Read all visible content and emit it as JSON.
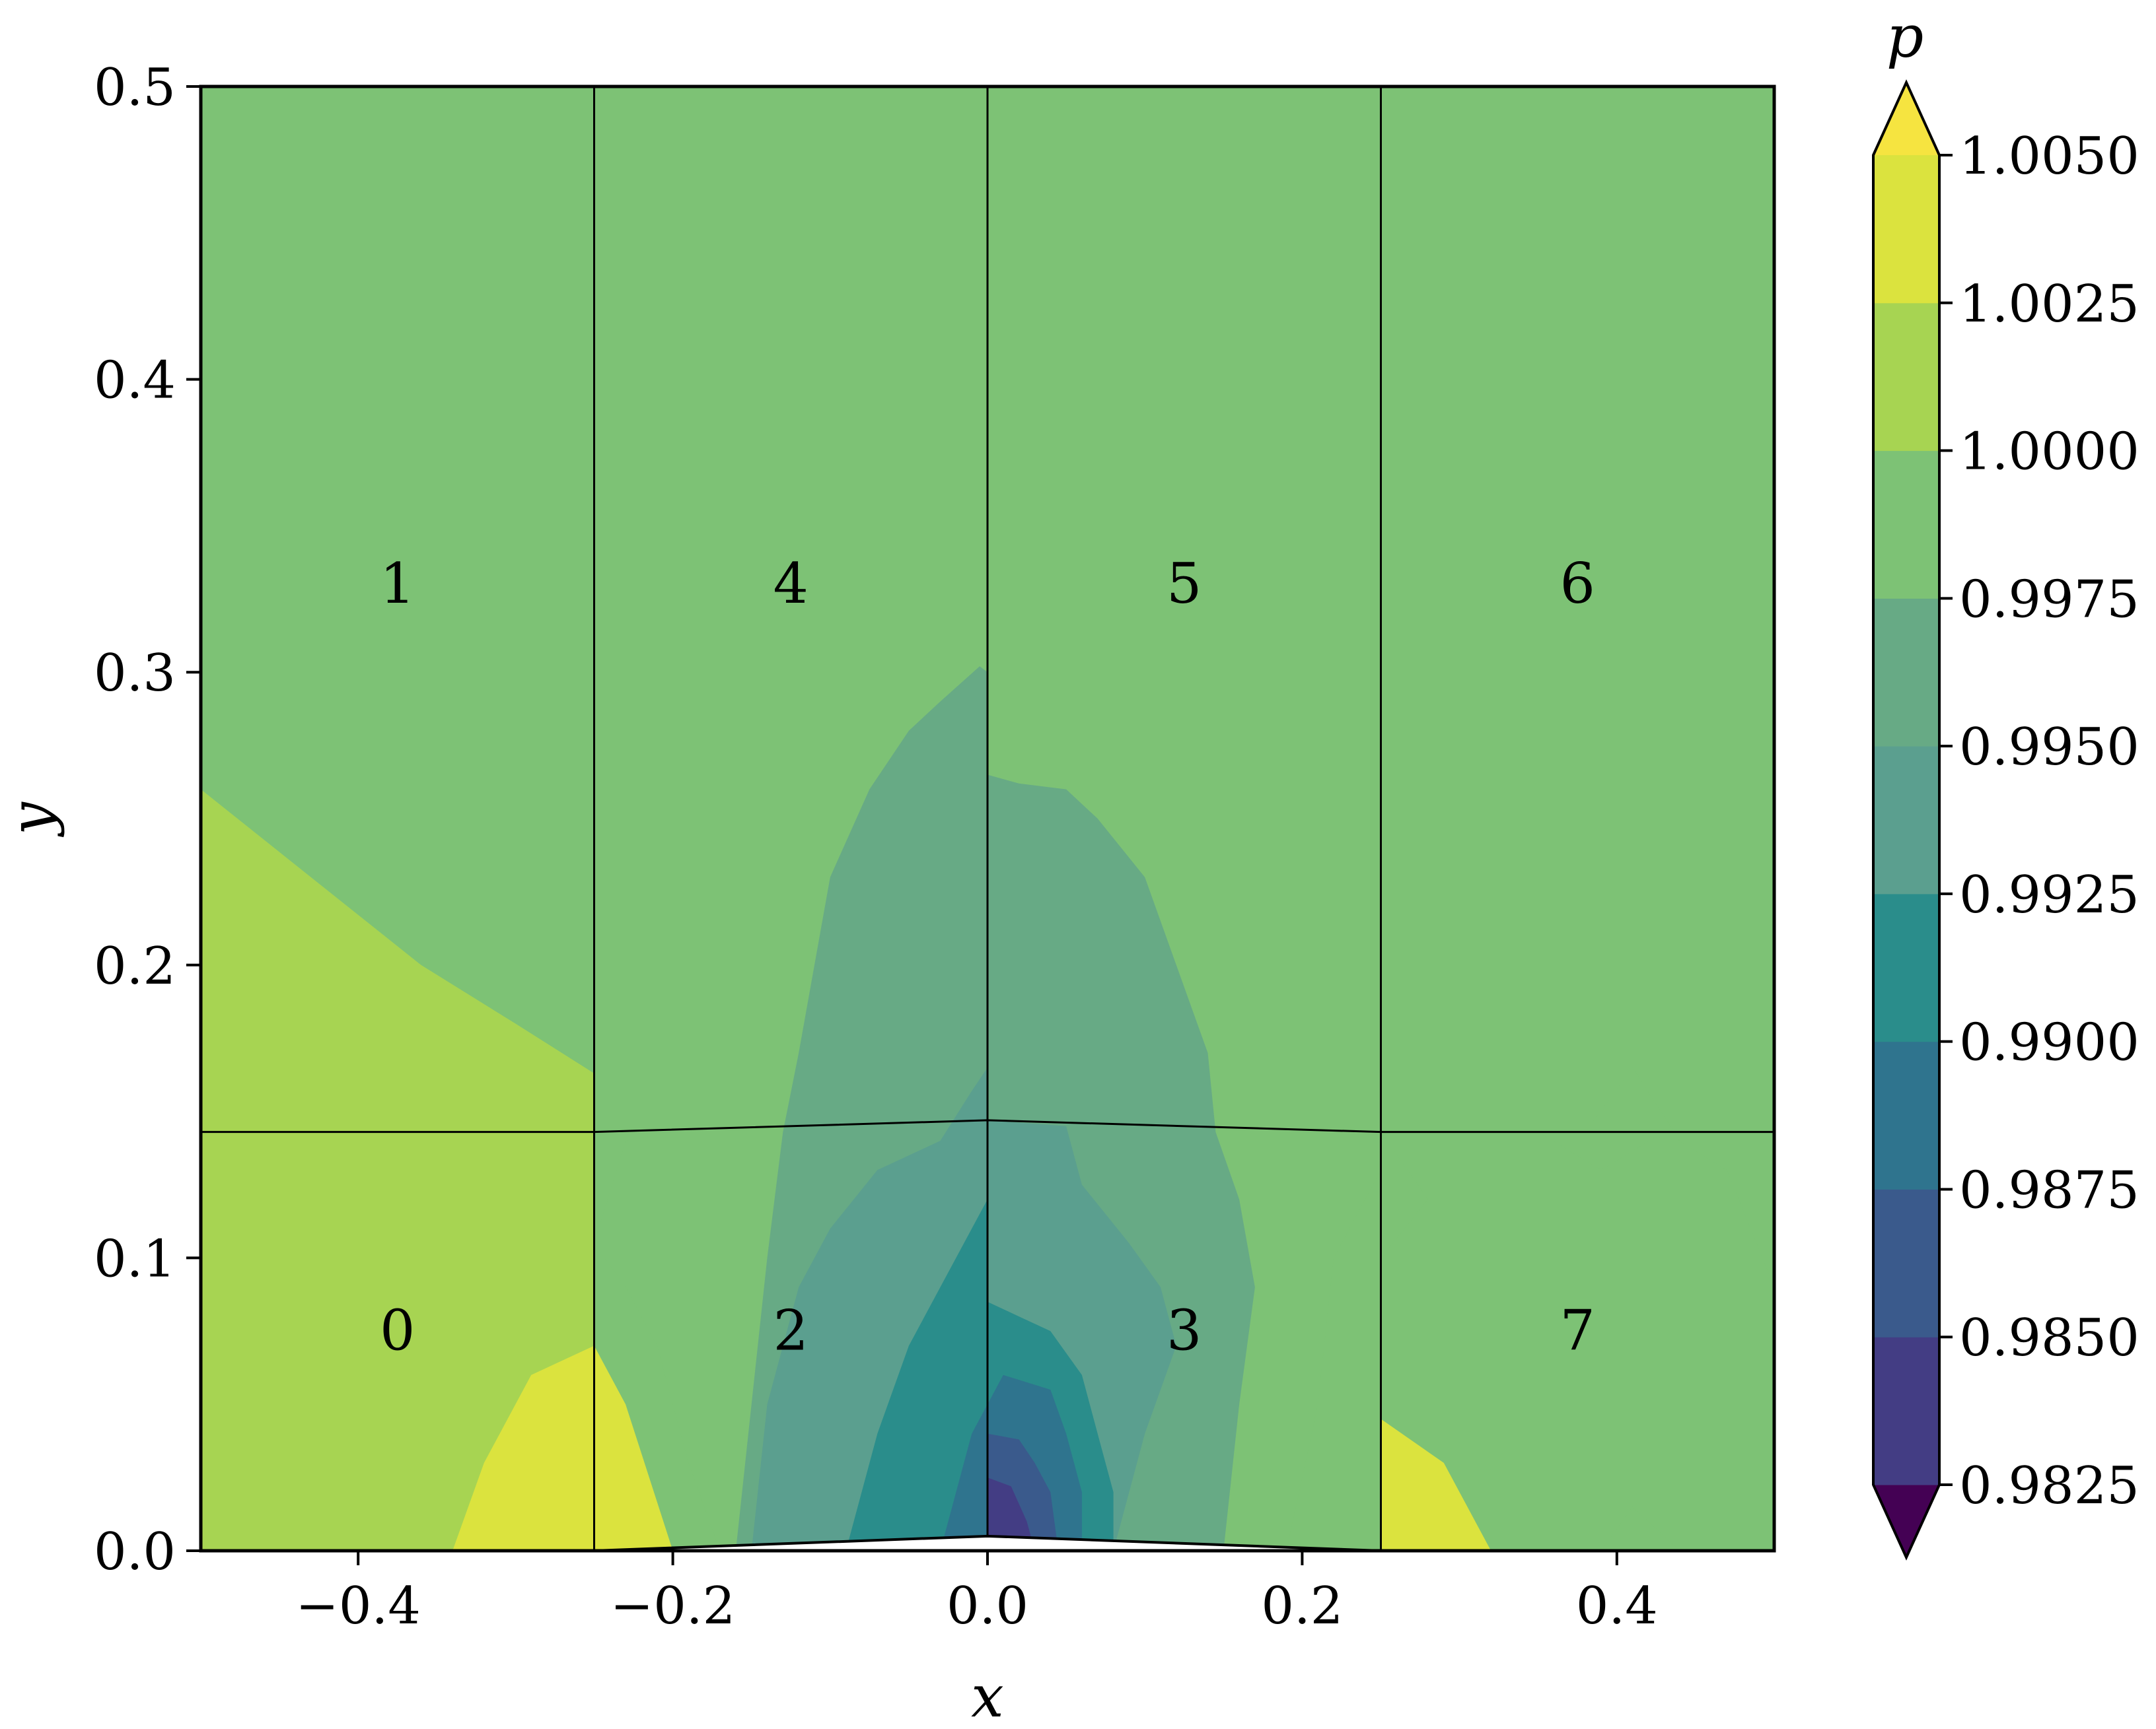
{
  "chart_data": {
    "type": "heatmap",
    "title": "",
    "xlabel": "x",
    "ylabel": "y",
    "xlim": [
      -0.5,
      0.5
    ],
    "ylim": [
      0.0,
      0.5
    ],
    "grid": false,
    "x_ticks": [
      {
        "value": -0.4,
        "label": "−0.4"
      },
      {
        "value": -0.2,
        "label": "−0.2"
      },
      {
        "value": 0.0,
        "label": "0.0"
      },
      {
        "value": 0.2,
        "label": "0.2"
      },
      {
        "value": 0.4,
        "label": "0.4"
      }
    ],
    "y_ticks": [
      {
        "value": 0.0,
        "label": "0.0"
      },
      {
        "value": 0.1,
        "label": "0.1"
      },
      {
        "value": 0.2,
        "label": "0.2"
      },
      {
        "value": 0.3,
        "label": "0.3"
      },
      {
        "value": 0.4,
        "label": "0.4"
      },
      {
        "value": 0.5,
        "label": "0.5"
      }
    ],
    "colorbar": {
      "label": "p",
      "levels": [
        0.9825,
        0.985,
        0.9875,
        0.99,
        0.9925,
        0.995,
        0.9975,
        1.0,
        1.0025,
        1.005
      ],
      "tick_labels": [
        "0.9825",
        "0.9850",
        "0.9875",
        "0.9900",
        "0.9925",
        "0.9950",
        "0.9975",
        "1.0000",
        "1.0025",
        "1.0050"
      ],
      "extend": "both",
      "colormap": "viridis",
      "band_colors": [
        "#471365",
        "#433d84",
        "#3a5a8c",
        "#2f748e",
        "#2a8d8b",
        "#5b9f8f",
        "#67aa85",
        "#7dc275",
        "#a7d452",
        "#dbe33e",
        "#f6e440"
      ],
      "under_color": "#440154",
      "over_color": "#f6e440"
    },
    "blocks": [
      {
        "id": "0",
        "x": -0.375,
        "y": 0.075
      },
      {
        "id": "1",
        "x": -0.375,
        "y": 0.33
      },
      {
        "id": "2",
        "x": -0.125,
        "y": 0.075
      },
      {
        "id": "3",
        "x": 0.125,
        "y": 0.075
      },
      {
        "id": "4",
        "x": -0.125,
        "y": 0.33
      },
      {
        "id": "5",
        "x": 0.125,
        "y": 0.33
      },
      {
        "id": "6",
        "x": 0.375,
        "y": 0.33
      },
      {
        "id": "7",
        "x": 0.375,
        "y": 0.075
      }
    ],
    "bump": {
      "x": [
        -0.25,
        0.0,
        0.25
      ],
      "y": [
        0.0,
        0.005,
        0.0
      ]
    },
    "block_interface_y": [
      0.143,
      0.147,
      0.143
    ],
    "contour_regions": [
      {
        "level": 1.0,
        "points": [
          [
            -0.5,
            0.26
          ],
          [
            -0.43,
            0.23
          ],
          [
            -0.36,
            0.2
          ],
          [
            -0.3,
            0.18
          ],
          [
            -0.25,
            0.163
          ],
          [
            -0.25,
            0.143
          ],
          [
            -0.5,
            0.143
          ]
        ]
      },
      {
        "level": 1.0,
        "points": [
          [
            -0.5,
            0.143
          ],
          [
            -0.25,
            0.143
          ],
          [
            -0.25,
            0.07
          ],
          [
            -0.5,
            0.0
          ],
          [
            -0.5,
            0.0
          ]
        ]
      },
      {
        "level": 1.0,
        "points": [
          [
            -0.5,
            0.0
          ],
          [
            -0.5,
            0.143
          ],
          [
            -0.25,
            0.143
          ],
          [
            -0.25,
            0.0
          ]
        ]
      },
      {
        "level": 1.0025,
        "points": [
          [
            -0.34,
            0.0
          ],
          [
            -0.32,
            0.03
          ],
          [
            -0.29,
            0.06
          ],
          [
            -0.25,
            0.07
          ],
          [
            -0.23,
            0.05
          ],
          [
            -0.2,
            0.0
          ]
        ]
      },
      {
        "level": 1.0025,
        "points": [
          [
            -0.25,
            0.0
          ],
          [
            -0.25,
            0.04
          ],
          [
            -0.23,
            0.02
          ],
          [
            -0.22,
            0.0
          ]
        ]
      },
      {
        "level": 0.9975,
        "points": [
          [
            -0.25,
            0.12
          ],
          [
            -0.22,
            0.143
          ],
          [
            -0.25,
            0.143
          ]
        ]
      },
      {
        "level": 0.9975,
        "points": [
          [
            -0.25,
            0.105
          ],
          [
            -0.23,
            0.14
          ],
          [
            -0.2,
            0.143
          ],
          [
            0.0,
            0.147
          ],
          [
            0.25,
            0.143
          ],
          [
            0.25,
            0.13
          ],
          [
            0.22,
            0.1
          ],
          [
            0.21,
            0.05
          ],
          [
            0.19,
            0.0
          ],
          [
            -0.17,
            0.0
          ],
          [
            -0.19,
            0.03
          ],
          [
            -0.21,
            0.07
          ],
          [
            -0.23,
            0.09
          ]
        ]
      },
      {
        "level": 0.9975,
        "points": [
          [
            0.25,
            0.143
          ],
          [
            0.5,
            0.143
          ],
          [
            0.5,
            0.09
          ],
          [
            0.47,
            0.13
          ],
          [
            0.43,
            0.143
          ],
          [
            0.39,
            0.13
          ],
          [
            0.35,
            0.143
          ],
          [
            0.25,
            0.143
          ]
        ]
      },
      {
        "level": 0.9975,
        "points": [
          [
            0.25,
            0.143
          ],
          [
            0.28,
            0.12
          ],
          [
            0.25,
            0.1
          ]
        ]
      },
      {
        "level": 0.9975,
        "points": [
          [
            0.39,
            0.0
          ],
          [
            0.41,
            0.015
          ],
          [
            0.44,
            0.0
          ]
        ]
      },
      {
        "level": 0.9975,
        "points": [
          [
            0.38,
            0.143
          ],
          [
            0.41,
            0.165
          ],
          [
            0.44,
            0.14
          ],
          [
            0.4,
            0.143
          ]
        ]
      },
      {
        "level": 1.0025,
        "points": [
          [
            0.25,
            0.0
          ],
          [
            0.25,
            0.045
          ],
          [
            0.29,
            0.03
          ],
          [
            0.32,
            0.0
          ]
        ]
      },
      {
        "level": 0.995,
        "points": [
          [
            -0.16,
            0.0
          ],
          [
            -0.15,
            0.05
          ],
          [
            -0.14,
            0.1
          ],
          [
            -0.13,
            0.143
          ],
          [
            -0.12,
            0.17
          ],
          [
            -0.11,
            0.2
          ],
          [
            -0.1,
            0.23
          ],
          [
            -0.075,
            0.26
          ],
          [
            -0.05,
            0.28
          ],
          [
            -0.03,
            0.29
          ],
          [
            -0.005,
            0.302
          ],
          [
            0.0,
            0.3
          ],
          [
            0.0,
            0.265
          ],
          [
            0.02,
            0.262
          ],
          [
            0.05,
            0.26
          ],
          [
            0.07,
            0.25
          ],
          [
            0.1,
            0.23
          ],
          [
            0.12,
            0.2
          ],
          [
            0.14,
            0.17
          ],
          [
            0.145,
            0.143
          ],
          [
            0.16,
            0.12
          ],
          [
            0.17,
            0.09
          ],
          [
            0.16,
            0.05
          ],
          [
            0.15,
            0.0
          ]
        ]
      },
      {
        "level": 0.9925,
        "points": [
          [
            -0.15,
            0.0
          ],
          [
            -0.14,
            0.05
          ],
          [
            -0.12,
            0.09
          ],
          [
            -0.1,
            0.11
          ],
          [
            -0.07,
            0.13
          ],
          [
            -0.03,
            0.14
          ],
          [
            -0.01,
            0.157
          ],
          [
            0.0,
            0.165
          ],
          [
            0.0,
            0.147
          ],
          [
            0.05,
            0.145
          ],
          [
            0.06,
            0.125
          ],
          [
            0.09,
            0.105
          ],
          [
            0.11,
            0.09
          ],
          [
            0.12,
            0.07
          ],
          [
            0.1,
            0.04
          ],
          [
            0.08,
            0.0
          ]
        ]
      },
      {
        "level": 0.99,
        "points": [
          [
            -0.09,
            0.0
          ],
          [
            -0.07,
            0.04
          ],
          [
            -0.05,
            0.07
          ],
          [
            -0.03,
            0.09
          ],
          [
            -0.01,
            0.11
          ],
          [
            0.0,
            0.12
          ],
          [
            0.0,
            0.085
          ],
          [
            0.02,
            0.08
          ],
          [
            0.04,
            0.075
          ],
          [
            0.06,
            0.06
          ],
          [
            0.07,
            0.04
          ],
          [
            0.08,
            0.02
          ],
          [
            0.08,
            0.0
          ]
        ]
      },
      {
        "level": 0.9875,
        "points": [
          [
            -0.03,
            0.0
          ],
          [
            -0.02,
            0.02
          ],
          [
            -0.01,
            0.04
          ],
          [
            0.0,
            0.05
          ],
          [
            0.01,
            0.06
          ],
          [
            0.04,
            0.055
          ],
          [
            0.05,
            0.04
          ],
          [
            0.06,
            0.02
          ],
          [
            0.06,
            0.0
          ]
        ]
      },
      {
        "level": 0.985,
        "points": [
          [
            0.0,
            0.005
          ],
          [
            0.0,
            0.04
          ],
          [
            0.02,
            0.038
          ],
          [
            0.03,
            0.03
          ],
          [
            0.04,
            0.02
          ],
          [
            0.045,
            0.0
          ]
        ]
      },
      {
        "level": 0.9825,
        "points": [
          [
            0.0,
            0.005
          ],
          [
            0.0,
            0.025
          ],
          [
            0.015,
            0.022
          ],
          [
            0.025,
            0.01
          ],
          [
            0.03,
            0.0
          ]
        ]
      }
    ]
  }
}
